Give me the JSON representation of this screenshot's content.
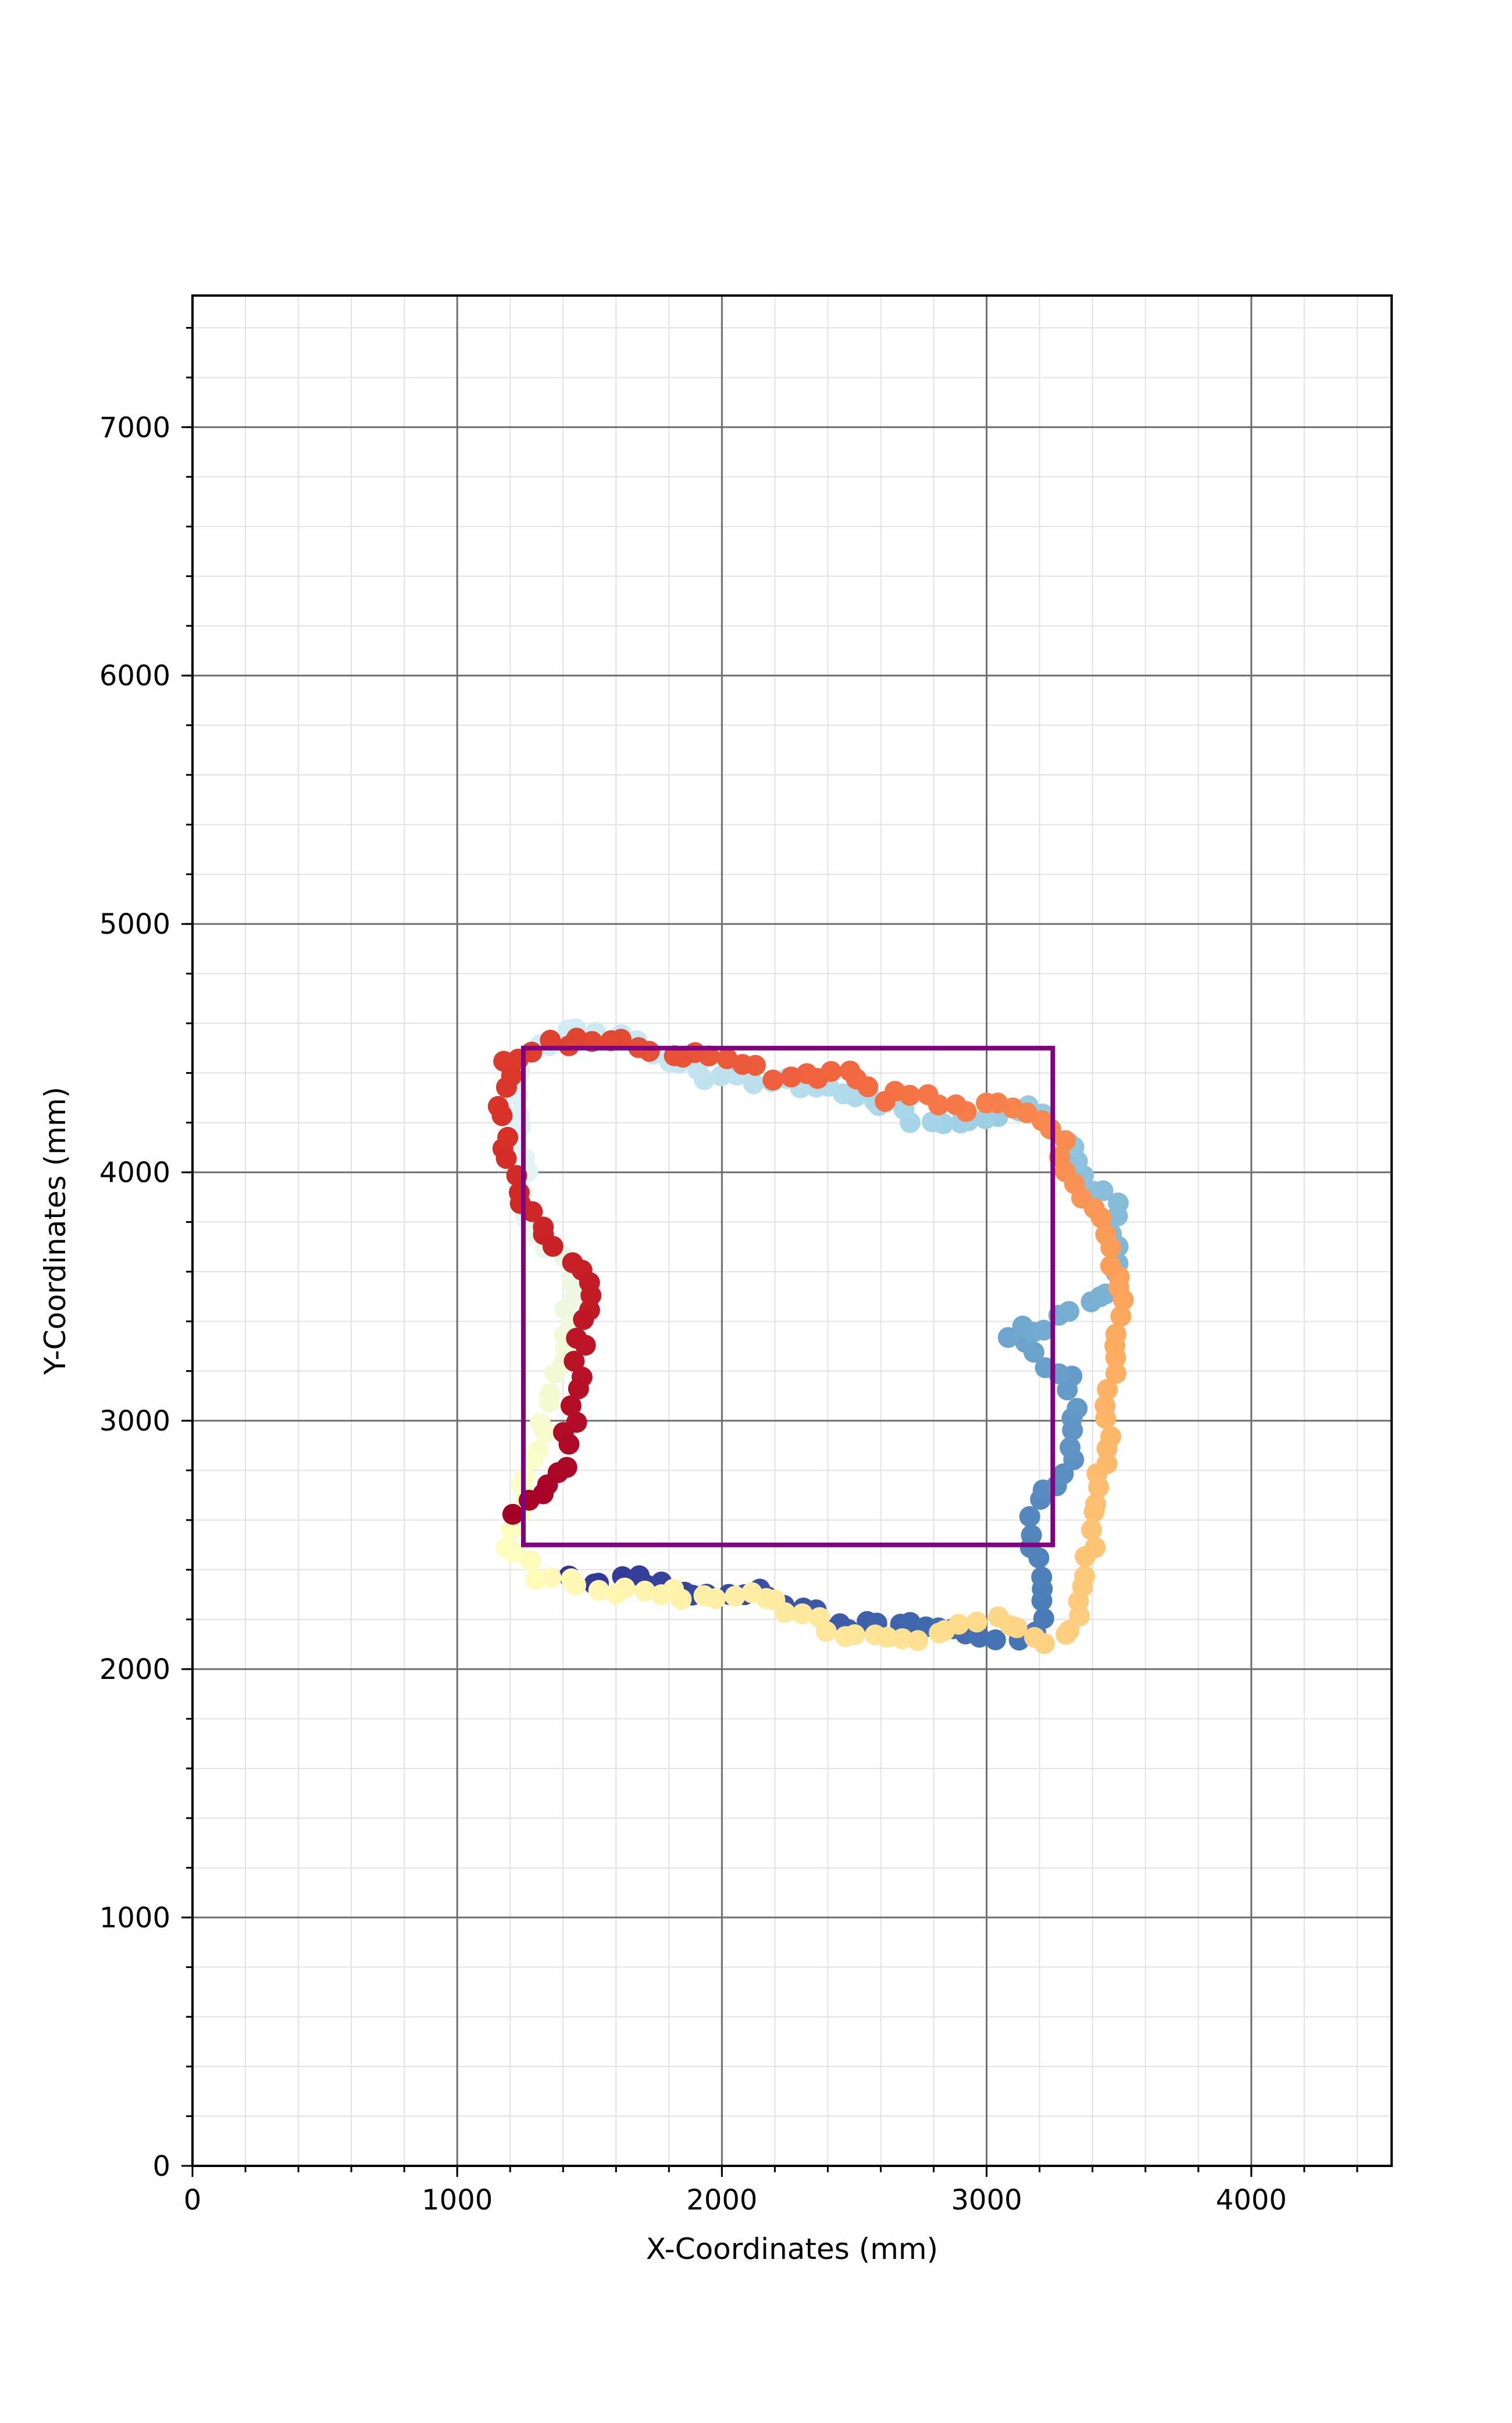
{
  "chart_data": {
    "type": "scatter",
    "title": "",
    "xlabel": "X-Coordinates (mm)",
    "ylabel": "Y-Coordinates (mm)",
    "xlim": [
      0,
      4530
    ],
    "ylim": [
      0,
      7530
    ],
    "x_ticks": [
      0,
      1000,
      2000,
      3000,
      4000
    ],
    "x_tick_labels": [
      "0",
      "1000",
      "2000",
      "3000",
      "4000"
    ],
    "y_ticks": [
      0,
      1000,
      2000,
      3000,
      4000,
      5000,
      6000,
      7000
    ],
    "y_tick_labels": [
      "0",
      "1000",
      "2000",
      "3000",
      "4000",
      "5000",
      "6000",
      "7000"
    ],
    "x_minor_step": 200,
    "y_minor_step": 200,
    "grid": true,
    "legend": "none",
    "colormap": "RdYlBu",
    "colormap_stops": [
      "#a50026",
      "#d73027",
      "#f46d43",
      "#fdae61",
      "#fee090",
      "#ffffbf",
      "#e0f3f8",
      "#abd9e9",
      "#74add1",
      "#4575b4",
      "#313695"
    ],
    "reference_rectangle": {
      "color": "#800080",
      "x0": 1250,
      "y0": 2500,
      "x1": 3250,
      "y1": 4500
    },
    "path": [
      [
        1440,
        2360
      ],
      [
        1640,
        2370
      ],
      [
        1860,
        2320
      ],
      [
        2100,
        2310
      ],
      [
        2300,
        2250
      ],
      [
        2400,
        2160
      ],
      [
        2600,
        2200
      ],
      [
        2700,
        2180
      ],
      [
        2900,
        2150
      ],
      [
        3050,
        2110
      ],
      [
        3200,
        2150
      ],
      [
        3230,
        2310
      ],
      [
        3150,
        2560
      ],
      [
        3200,
        2700
      ],
      [
        3310,
        2800
      ],
      [
        3340,
        3000
      ],
      [
        3320,
        3180
      ],
      [
        3180,
        3250
      ],
      [
        3080,
        3360
      ],
      [
        3200,
        3360
      ],
      [
        3360,
        3460
      ],
      [
        3460,
        3500
      ],
      [
        3480,
        3650
      ],
      [
        3480,
        3880
      ],
      [
        3360,
        3950
      ],
      [
        3330,
        4100
      ],
      [
        3200,
        4250
      ],
      [
        3050,
        4240
      ],
      [
        2860,
        4200
      ],
      [
        2700,
        4220
      ],
      [
        2560,
        4280
      ],
      [
        2450,
        4330
      ],
      [
        2300,
        4360
      ],
      [
        2150,
        4370
      ],
      [
        1950,
        4380
      ],
      [
        1800,
        4450
      ],
      [
        1640,
        4550
      ],
      [
        1400,
        4560
      ],
      [
        1250,
        4450
      ],
      [
        1220,
        4260
      ],
      [
        1250,
        4050
      ],
      [
        1250,
        3850
      ],
      [
        1330,
        3700
      ],
      [
        1450,
        3600
      ],
      [
        1420,
        3400
      ],
      [
        1380,
        3200
      ],
      [
        1330,
        3000
      ],
      [
        1280,
        2800
      ],
      [
        1230,
        2620
      ],
      [
        1200,
        2500
      ],
      [
        1300,
        2370
      ],
      [
        1500,
        2320
      ],
      [
        1700,
        2330
      ],
      [
        1900,
        2280
      ],
      [
        2150,
        2300
      ],
      [
        2400,
        2160
      ],
      [
        2650,
        2120
      ],
      [
        2850,
        2150
      ],
      [
        3050,
        2200
      ],
      [
        3260,
        2100
      ],
      [
        3350,
        2220
      ],
      [
        3400,
        2480
      ],
      [
        3440,
        2800
      ],
      [
        3460,
        3100
      ],
      [
        3480,
        3350
      ],
      [
        3500,
        3500
      ],
      [
        3440,
        3760
      ],
      [
        3320,
        4000
      ],
      [
        3250,
        4200
      ],
      [
        3100,
        4270
      ],
      [
        2900,
        4260
      ],
      [
        2780,
        4320
      ],
      [
        2600,
        4300
      ],
      [
        2450,
        4400
      ],
      [
        2200,
        4380
      ],
      [
        2050,
        4450
      ],
      [
        1850,
        4470
      ],
      [
        1600,
        4530
      ],
      [
        1350,
        4520
      ],
      [
        1200,
        4450
      ],
      [
        1170,
        4300
      ],
      [
        1200,
        4000
      ],
      [
        1250,
        3850
      ],
      [
        1380,
        3680
      ],
      [
        1500,
        3580
      ],
      [
        1470,
        3380
      ],
      [
        1460,
        3150
      ],
      [
        1420,
        2950
      ],
      [
        1390,
        2800
      ],
      [
        1310,
        2690
      ],
      [
        1200,
        2640
      ]
    ],
    "point_count": 300,
    "jitter_mm": 22
  }
}
